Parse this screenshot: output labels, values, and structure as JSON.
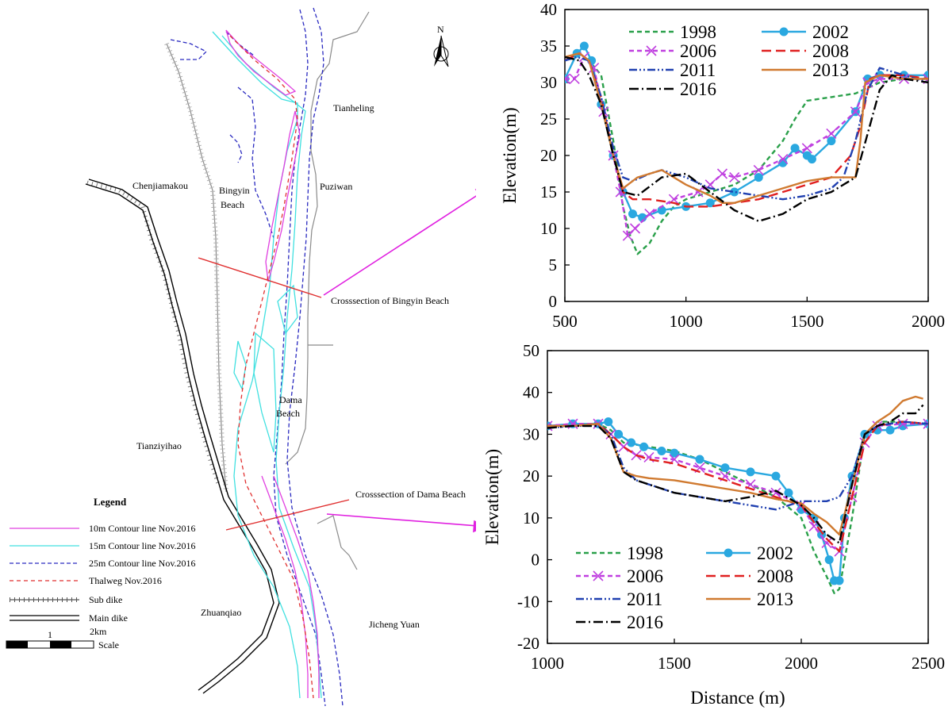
{
  "map": {
    "north_label": "N",
    "places": {
      "tianheling": "Tianheling",
      "chenjiamakou": "Chenjiamakou",
      "bingyin": "Bingyin",
      "beach_bingyin": "Beach",
      "puziwan": "Puziwan",
      "crosssection_bingyin": "Crosssection of Bingyin Beach",
      "dama": "Dama",
      "beach_dama": "Beach",
      "tianziyihao": "Tianziyihao",
      "crosssection_dama": "Crosssection of Dama Beach",
      "zhuanqiao": "Zhuanqiao",
      "jicheng": "Jicheng Yuan"
    },
    "legend": {
      "title": "Legend",
      "items": [
        {
          "label": "10m Contour line Nov.2016",
          "color": "#e040e0"
        },
        {
          "label": "15m Contour line Nov.2016",
          "color": "#40e0e0"
        },
        {
          "label": "25m Contour line Nov.2016",
          "color": "#2a2ac0"
        },
        {
          "label": "Thalweg Nov.2016",
          "color": "#e03030"
        },
        {
          "label": "Sub dike",
          "color": "#555555"
        },
        {
          "label": "Main dike",
          "color": "#000000"
        }
      ]
    },
    "scale": {
      "label_1": "1",
      "label_2": "2km",
      "label": "Scale"
    },
    "colors": {
      "contour10": "#e040e0",
      "contour15": "#40e0e0",
      "contour25": "#2a2ac0",
      "thalweg": "#e03030",
      "arrow": "#e020e0",
      "section_line": "#e03030"
    }
  },
  "chart_data": [
    {
      "type": "line",
      "xlabel": "",
      "ylabel": "Elevation(m)",
      "xlim": [
        500,
        2000
      ],
      "ylim": [
        0,
        40
      ],
      "xticks": [
        500,
        1000,
        1500,
        2000
      ],
      "yticks": [
        0,
        5,
        10,
        15,
        20,
        25,
        30,
        35,
        40
      ],
      "legend_position": "top",
      "series": [
        {
          "name": "1998",
          "color": "#2aa04a",
          "dash": "6,4",
          "marker": "none",
          "x": [
            500,
            560,
            600,
            650,
            700,
            740,
            770,
            800,
            850,
            900,
            950,
            1000,
            1100,
            1200,
            1300,
            1400,
            1450,
            1500,
            1600,
            1700,
            1800,
            1900,
            2000
          ],
          "y": [
            33,
            34,
            33,
            31,
            22,
            13,
            9,
            6.5,
            8,
            11,
            13,
            14,
            15,
            16,
            18,
            22,
            25,
            27.5,
            28,
            28.5,
            30,
            30.5,
            30.5
          ]
        },
        {
          "name": "2002",
          "color": "#2aa8e0",
          "dash": "",
          "marker": "circle",
          "x": [
            500,
            550,
            580,
            610,
            650,
            700,
            740,
            780,
            820,
            900,
            1000,
            1100,
            1200,
            1300,
            1400,
            1450,
            1500,
            1520,
            1600,
            1700,
            1750,
            1800,
            1900,
            2000
          ],
          "y": [
            30.5,
            34,
            35,
            33,
            27,
            20,
            15,
            12,
            11.5,
            12.5,
            13,
            13.5,
            15,
            17,
            19,
            21,
            20,
            19.5,
            22,
            26,
            30.5,
            31,
            31,
            31
          ]
        },
        {
          "name": "2006",
          "color": "#c040e0",
          "dash": "6,4",
          "marker": "x",
          "x": [
            500,
            540,
            580,
            620,
            660,
            700,
            730,
            760,
            790,
            850,
            950,
            1050,
            1100,
            1150,
            1200,
            1300,
            1400,
            1500,
            1600,
            1700,
            1750,
            1800,
            1900,
            2000
          ],
          "y": [
            30.5,
            30.5,
            33.5,
            32,
            26,
            20,
            15,
            9,
            10,
            12,
            14,
            15,
            16,
            17.5,
            17,
            18,
            19.5,
            21,
            23,
            26,
            30,
            30.5,
            30.5,
            30.5
          ]
        },
        {
          "name": "2008",
          "color": "#e02020",
          "dash": "12,6",
          "marker": "none",
          "x": [
            500,
            560,
            600,
            650,
            700,
            740,
            780,
            850,
            950,
            1000,
            1100,
            1200,
            1300,
            1400,
            1500,
            1600,
            1680,
            1720,
            1760,
            1800,
            1900,
            2000
          ],
          "y": [
            33,
            34,
            33,
            28,
            20,
            15,
            14,
            14,
            13.5,
            13,
            13,
            13.5,
            14,
            15,
            16,
            17,
            20,
            24,
            30.5,
            31,
            31,
            30.5
          ]
        },
        {
          "name": "2011",
          "color": "#2040b0",
          "dash": "10,3,2,3,2,3",
          "marker": "none",
          "x": [
            500,
            550,
            600,
            650,
            700,
            740,
            780,
            850,
            900,
            1000,
            1100,
            1200,
            1300,
            1400,
            1500,
            1600,
            1650,
            1700,
            1750,
            1800,
            1900,
            2000
          ],
          "y": [
            33,
            33.5,
            33,
            28,
            21,
            17,
            16.5,
            17.5,
            18,
            17,
            15.5,
            15,
            14.5,
            14,
            14.5,
            15.5,
            17,
            22,
            29,
            32,
            31,
            30
          ]
        },
        {
          "name": "2013",
          "color": "#d07a30",
          "dash": "",
          "marker": "none",
          "x": [
            500,
            560,
            600,
            650,
            700,
            740,
            800,
            900,
            1000,
            1100,
            1150,
            1200,
            1300,
            1400,
            1500,
            1600,
            1700,
            1720,
            1740,
            1800,
            1900,
            2000
          ],
          "y": [
            33.5,
            34,
            33,
            27,
            20,
            15.5,
            17,
            18,
            16,
            14.5,
            13.5,
            13.5,
            14.5,
            15.5,
            16.5,
            17,
            17,
            22,
            30,
            31,
            30.5,
            30.5
          ]
        },
        {
          "name": "2016",
          "color": "#000000",
          "dash": "12,4,2,4",
          "marker": "none",
          "x": [
            500,
            560,
            600,
            650,
            700,
            740,
            800,
            900,
            1000,
            1100,
            1200,
            1300,
            1400,
            1500,
            1600,
            1700,
            1750,
            1800,
            1850,
            1900,
            2000
          ],
          "y": [
            33.5,
            33,
            31,
            27,
            20,
            15,
            14.5,
            17,
            17.5,
            15,
            12.5,
            11,
            12,
            14,
            15,
            17,
            23,
            29,
            31,
            30.5,
            30
          ]
        }
      ]
    },
    {
      "type": "line",
      "xlabel": "Distance (m)",
      "ylabel": "Elevation(m)",
      "xlim": [
        1000,
        2500
      ],
      "ylim": [
        -20,
        50
      ],
      "xticks": [
        1000,
        1500,
        2000,
        2500
      ],
      "yticks": [
        -20,
        -10,
        0,
        10,
        20,
        30,
        40,
        50
      ],
      "legend_position": "bottom-left",
      "series": [
        {
          "name": "1998",
          "color": "#2aa04a",
          "dash": "6,4",
          "marker": "none",
          "x": [
            1000,
            1100,
            1200,
            1250,
            1300,
            1400,
            1500,
            1600,
            1700,
            1800,
            1900,
            2000,
            2050,
            2100,
            2130,
            2150,
            2200,
            2250,
            2300,
            2400,
            2500
          ],
          "y": [
            32,
            32,
            32.5,
            31,
            28,
            27,
            26,
            24,
            21,
            18,
            15,
            10,
            2,
            -4,
            -8,
            -7,
            10,
            30,
            33,
            33,
            32.5
          ]
        },
        {
          "name": "2002",
          "color": "#2aa8e0",
          "dash": "",
          "marker": "circle",
          "x": [
            1000,
            1100,
            1200,
            1240,
            1280,
            1330,
            1380,
            1450,
            1500,
            1600,
            1700,
            1800,
            1900,
            1950,
            2000,
            2050,
            2080,
            2110,
            2130,
            2150,
            2170,
            2200,
            2250,
            2300,
            2350,
            2400,
            2500
          ],
          "y": [
            32,
            32.5,
            32.5,
            33,
            30,
            28,
            27,
            26,
            25.5,
            24,
            22,
            21,
            20,
            16,
            12,
            10,
            6,
            0,
            -5,
            -5,
            10,
            20,
            30,
            31,
            31,
            32,
            32.5
          ]
        },
        {
          "name": "2006",
          "color": "#c040e0",
          "dash": "6,4",
          "marker": "x",
          "x": [
            1000,
            1100,
            1200,
            1250,
            1300,
            1350,
            1400,
            1500,
            1600,
            1700,
            1800,
            1900,
            2000,
            2050,
            2100,
            2150,
            2200,
            2250,
            2300,
            2400,
            2500
          ],
          "y": [
            32,
            32.5,
            32.5,
            30,
            27,
            25,
            24.5,
            24,
            22,
            20,
            18,
            16,
            13,
            8,
            4,
            2,
            15,
            28,
            32,
            32.5,
            32.5
          ]
        },
        {
          "name": "2008",
          "color": "#e02020",
          "dash": "12,6",
          "marker": "none",
          "x": [
            1000,
            1100,
            1200,
            1250,
            1300,
            1350,
            1400,
            1500,
            1600,
            1700,
            1800,
            1900,
            2000,
            2050,
            2100,
            2150,
            2200,
            2250,
            2300,
            2400,
            2500
          ],
          "y": [
            32,
            32,
            32.5,
            30,
            27,
            25,
            24,
            23,
            21,
            19,
            17,
            15,
            13,
            9,
            5,
            2,
            15,
            28,
            32,
            33,
            32.5
          ]
        },
        {
          "name": "2011",
          "color": "#2040b0",
          "dash": "10,3,2,3,2,3",
          "marker": "none",
          "x": [
            1000,
            1100,
            1200,
            1250,
            1300,
            1350,
            1400,
            1500,
            1600,
            1700,
            1800,
            1900,
            2000,
            2050,
            2100,
            2150,
            2200,
            2250,
            2300,
            2400,
            2500
          ],
          "y": [
            31.5,
            32,
            32,
            30,
            22,
            19,
            18,
            16,
            15,
            14,
            13,
            12,
            14,
            14,
            14,
            15,
            20,
            30,
            32,
            33,
            32.5
          ]
        },
        {
          "name": "2013",
          "color": "#d07a30",
          "dash": "",
          "marker": "none",
          "x": [
            1000,
            1100,
            1200,
            1250,
            1300,
            1350,
            1400,
            1500,
            1600,
            1700,
            1800,
            1900,
            2000,
            2050,
            2100,
            2150,
            2200,
            2250,
            2300,
            2350,
            2400,
            2450,
            2480
          ],
          "y": [
            32,
            32,
            32.5,
            29,
            21,
            20,
            19.5,
            19,
            18,
            17,
            16,
            14.5,
            13.5,
            11,
            9,
            6,
            18,
            30,
            33,
            35,
            38,
            39,
            38.5
          ]
        },
        {
          "name": "2016",
          "color": "#000000",
          "dash": "12,4,2,4",
          "marker": "none",
          "x": [
            1000,
            1100,
            1200,
            1250,
            1300,
            1350,
            1400,
            1500,
            1600,
            1700,
            1800,
            1900,
            2000,
            2050,
            2100,
            2150,
            2200,
            2250,
            2300,
            2350,
            2400,
            2450,
            2480
          ],
          "y": [
            31.5,
            32,
            32,
            29,
            21,
            19,
            18,
            16,
            15,
            14,
            15,
            16.5,
            13,
            10,
            6,
            4,
            18,
            30,
            32,
            33,
            35,
            35,
            37
          ]
        }
      ]
    }
  ]
}
